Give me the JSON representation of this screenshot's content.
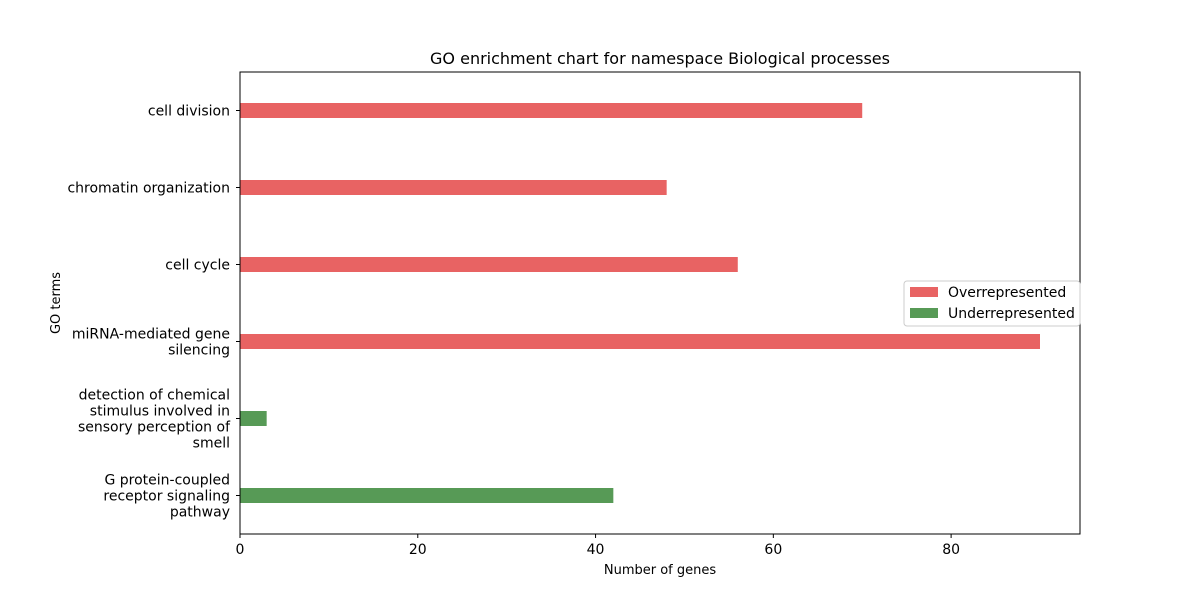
{
  "chart_data": {
    "type": "bar",
    "orientation": "horizontal",
    "title": "GO enrichment chart for namespace Biological processes",
    "xlabel": "Number of genes",
    "ylabel": "GO terms",
    "xlim": [
      0,
      94.5
    ],
    "xticks": [
      0,
      20,
      40,
      60,
      80
    ],
    "grid": false,
    "legend_position": "right",
    "categories": [
      [
        "cell division"
      ],
      [
        "chromatin organization"
      ],
      [
        "cell cycle"
      ],
      [
        "miRNA-mediated gene",
        "silencing"
      ],
      [
        "detection of chemical",
        "stimulus involved in",
        "sensory perception of",
        "smell"
      ],
      [
        "G protein-coupled",
        "receptor signaling",
        "pathway"
      ]
    ],
    "values": [
      70,
      48,
      56,
      90,
      3,
      42
    ],
    "bar_group": [
      "Overrepresented",
      "Overrepresented",
      "Overrepresented",
      "Overrepresented",
      "Underrepresented",
      "Underrepresented"
    ],
    "series": [
      {
        "name": "Overrepresented",
        "color": "#e86363"
      },
      {
        "name": "Underrepresented",
        "color": "#579a56"
      }
    ]
  }
}
